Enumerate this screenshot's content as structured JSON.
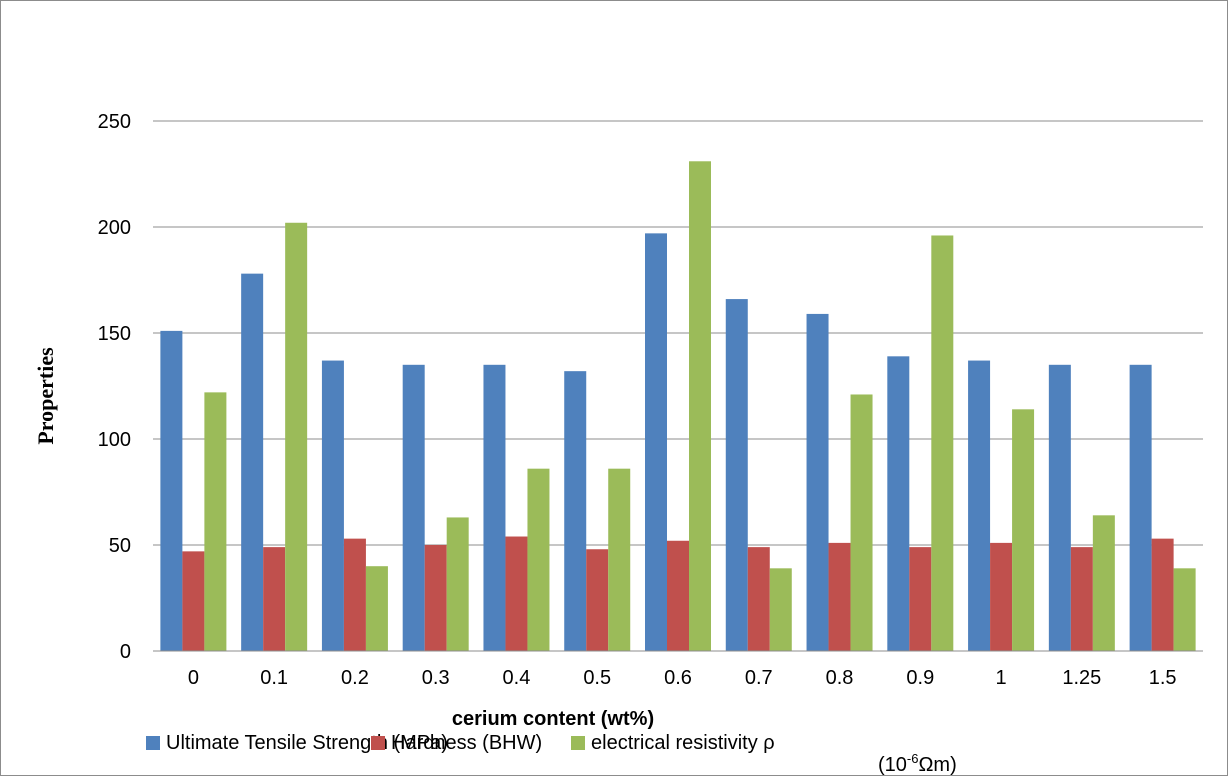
{
  "chart_data": {
    "type": "bar",
    "title": "",
    "xlabel": "cerium content (wt%)",
    "ylabel": "Properties",
    "ylim": [
      0,
      250
    ],
    "yticks": [
      "0",
      "50",
      "100",
      "150",
      "200",
      "250"
    ],
    "grid": true,
    "legend_position": "bottom",
    "categories": [
      "0",
      "0.1",
      "0.2",
      "0.3",
      "0.4",
      "0.5",
      "0.6",
      "0.7",
      "0.8",
      "0.9",
      "1",
      "1.25",
      "1.5"
    ],
    "series": [
      {
        "name": "Ultimate Tensile Strength (MPa)",
        "color": "#4f81bd",
        "values": [
          151,
          178,
          137,
          135,
          135,
          132,
          197,
          166,
          159,
          139,
          137,
          135,
          135
        ]
      },
      {
        "name": "Hardness (BHW)",
        "color": "#c0504d",
        "values": [
          47,
          49,
          53,
          50,
          54,
          48,
          52,
          49,
          51,
          49,
          51,
          49,
          53
        ]
      },
      {
        "name": "electrical resistivity ρ",
        "color": "#9bbb59",
        "values": [
          122,
          202,
          40,
          63,
          86,
          86,
          231,
          39,
          121,
          196,
          114,
          64,
          39
        ]
      }
    ],
    "legend_unit": {
      "base": "(10",
      "sup": "-6",
      "rest": "Ωm)"
    }
  }
}
